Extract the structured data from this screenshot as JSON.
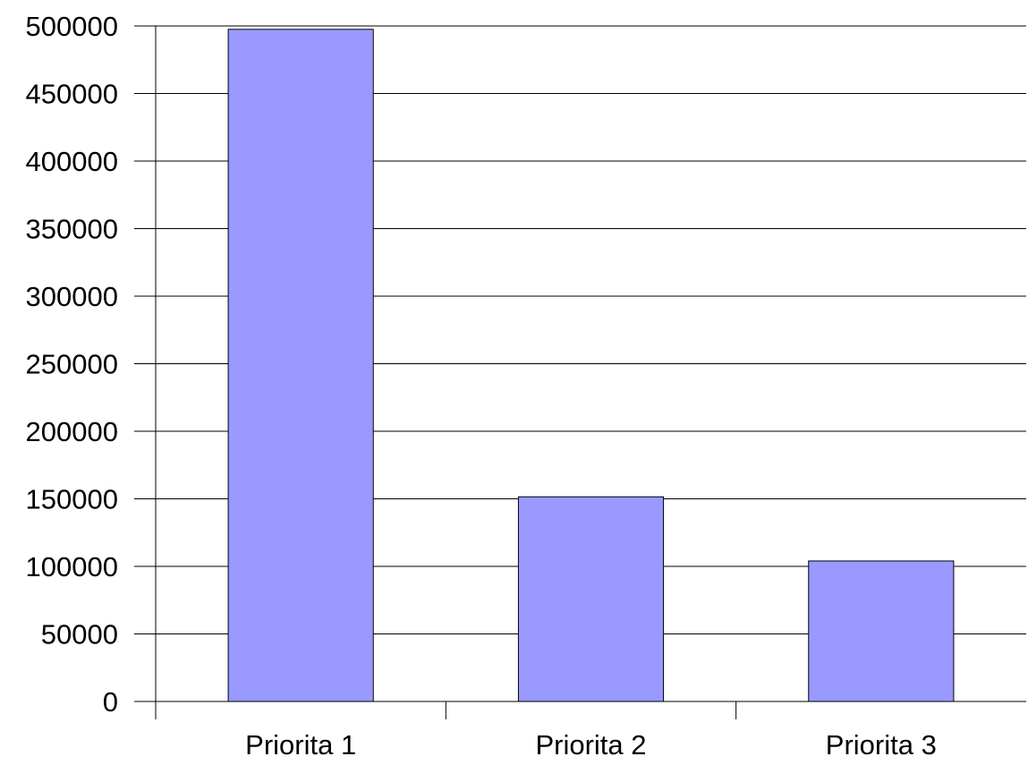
{
  "chart_data": {
    "type": "bar",
    "categories": [
      "Priorita 1",
      "Priorita 2",
      "Priorita 3"
    ],
    "values": [
      497500,
      151500,
      104000
    ],
    "ylim": [
      0,
      500000
    ],
    "yticks": [
      "0",
      "50000",
      "100000",
      "150000",
      "200000",
      "250000",
      "300000",
      "350000",
      "400000",
      "450000",
      "500000"
    ],
    "title": "",
    "xlabel": "",
    "ylabel": "",
    "grid": true,
    "legend": "none",
    "colors": {
      "bar_fill": "#9999ff",
      "bar_stroke": "#000000",
      "grid": "#000000",
      "axis": "#000000"
    }
  }
}
